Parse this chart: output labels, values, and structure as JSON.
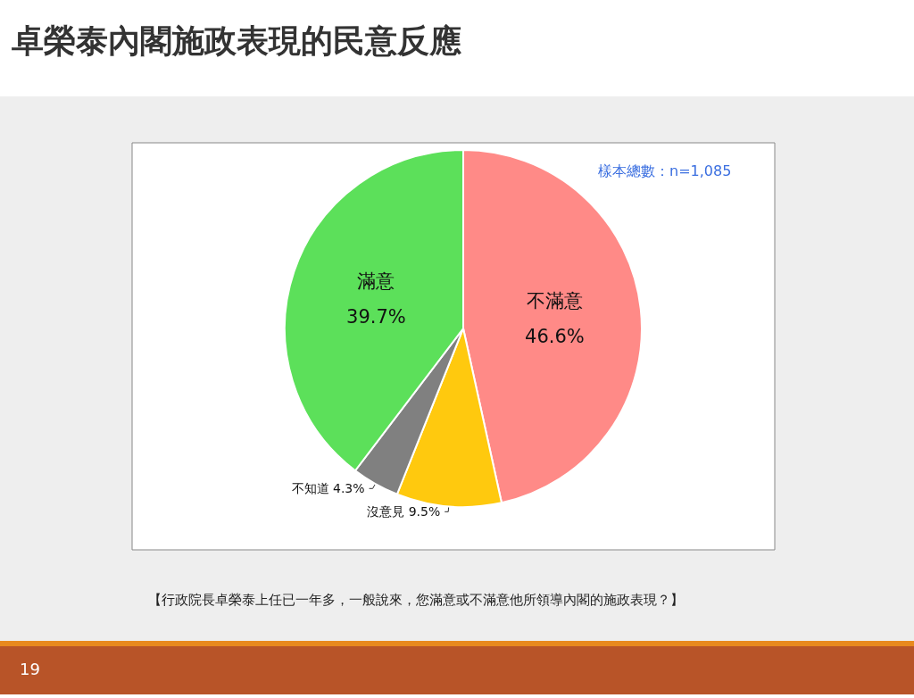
{
  "chart_data": {
    "type": "pie",
    "title": "卓榮泰內閣施政表現的民意反應",
    "categories": [
      "不滿意",
      "沒意見",
      "不知道",
      "滿意"
    ],
    "values": [
      46.6,
      9.5,
      4.3,
      39.7
    ],
    "colors": [
      "#ff8a87",
      "#ffc90e",
      "#808080",
      "#5ce05a"
    ],
    "value_labels": [
      "46.6%",
      "9.5%",
      "4.3%",
      "39.7%"
    ],
    "legend": false,
    "annotations": [
      "樣本總數：n=1,085",
      "【行政院長卓榮泰上任已一年多，一般說來，您滿意或不滿意他所領導內閣的施政表現？】",
      "19"
    ]
  }
}
